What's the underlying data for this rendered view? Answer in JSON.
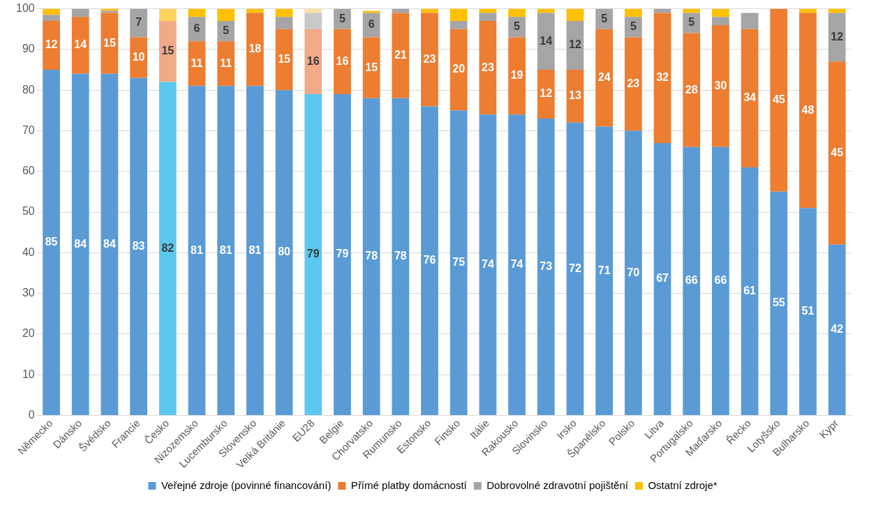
{
  "chart_data": {
    "type": "bar",
    "stacked": true,
    "categories": [
      "Německo",
      "Dánsko",
      "Švédsko",
      "Francie",
      "Česko",
      "Nizozemsko",
      "Lucembursko",
      "Slovensko",
      "Velká Británie",
      "EU28",
      "Belgie",
      "Chorvatsko",
      "Rumunsko",
      "Estonsko",
      "Finsko",
      "Itálie",
      "Rakousko",
      "Slovinsko",
      "Irsko",
      "Španělsko",
      "Polsko",
      "Litva",
      "Portugalsko",
      "Maďarsko",
      "Řecko",
      "Lotyšsko",
      "Bulharsko",
      "Kypr"
    ],
    "series": [
      {
        "name": "Veřejné zdroje (povinné financování)",
        "color": "#5b9bd5",
        "colors": [
          "#5b9bd5",
          "#5b9bd5",
          "#5b9bd5",
          "#5b9bd5",
          "#5bc8f0",
          "#5b9bd5",
          "#5b9bd5",
          "#5b9bd5",
          "#5b9bd5",
          "#5bc8f0",
          "#5b9bd5",
          "#5b9bd5",
          "#5b9bd5",
          "#5b9bd5",
          "#5b9bd5",
          "#5b9bd5",
          "#5b9bd5",
          "#5b9bd5",
          "#5b9bd5",
          "#5b9bd5",
          "#5b9bd5",
          "#5b9bd5",
          "#5b9bd5",
          "#5b9bd5",
          "#5b9bd5",
          "#5b9bd5",
          "#5b9bd5",
          "#5b9bd5"
        ],
        "values": [
          85,
          84,
          84,
          83,
          82,
          81,
          81,
          81,
          80,
          79,
          79,
          78,
          78,
          76,
          75,
          74,
          74,
          73,
          72,
          71,
          70,
          67,
          66,
          66,
          61,
          55,
          51,
          42
        ],
        "value_labels": [
          "85",
          "84",
          "84",
          "83",
          "82",
          "81",
          "81",
          "81",
          "80",
          "79",
          "79",
          "78",
          "78",
          "76",
          "75",
          "74",
          "74",
          "73",
          "72",
          "71",
          "70",
          "67",
          "66",
          "66",
          "61",
          "55",
          "51",
          "42"
        ]
      },
      {
        "name": "Přímé platby domácností",
        "color": "#ed7d31",
        "colors": [
          "#ed7d31",
          "#ed7d31",
          "#ed7d31",
          "#ed7d31",
          "#f2a987",
          "#ed7d31",
          "#ed7d31",
          "#ed7d31",
          "#ed7d31",
          "#f2a987",
          "#ed7d31",
          "#ed7d31",
          "#ed7d31",
          "#ed7d31",
          "#ed7d31",
          "#ed7d31",
          "#ed7d31",
          "#ed7d31",
          "#ed7d31",
          "#ed7d31",
          "#ed7d31",
          "#ed7d31",
          "#ed7d31",
          "#ed7d31",
          "#ed7d31",
          "#ed7d31",
          "#ed7d31",
          "#ed7d31"
        ],
        "values": [
          12,
          14,
          15,
          10,
          15,
          11,
          11,
          18,
          15,
          16,
          16,
          15,
          21,
          23,
          20,
          23,
          19,
          12,
          13,
          24,
          23,
          32,
          28,
          30,
          34,
          45,
          48,
          45
        ],
        "value_labels": [
          "12",
          "14",
          "15",
          "10",
          "15",
          "11",
          "11",
          "18",
          "15",
          "16",
          "16",
          "15",
          "21",
          "23",
          "20",
          "23",
          "19",
          "12",
          "13",
          "24",
          "23",
          "32",
          "28",
          "30",
          "34",
          "45",
          "48",
          "45"
        ]
      },
      {
        "name": "Dobrovolné zdravotní pojištění",
        "color": "#a5a5a5",
        "colors": [
          "#a5a5a5",
          "#a5a5a5",
          "#a5a5a5",
          "#a5a5a5",
          "#c9c9c9",
          "#a5a5a5",
          "#a5a5a5",
          "#a5a5a5",
          "#a5a5a5",
          "#c9c9c9",
          "#a5a5a5",
          "#a5a5a5",
          "#a5a5a5",
          "#a5a5a5",
          "#a5a5a5",
          "#a5a5a5",
          "#a5a5a5",
          "#a5a5a5",
          "#a5a5a5",
          "#a5a5a5",
          "#a5a5a5",
          "#a5a5a5",
          "#a5a5a5",
          "#a5a5a5",
          "#a5a5a5",
          "#a5a5a5",
          "#a5a5a5",
          "#a5a5a5"
        ],
        "values": [
          1.5,
          2,
          0.5,
          7,
          0,
          6,
          5,
          0,
          3,
          4,
          5,
          6,
          1,
          0,
          2,
          2,
          5,
          14,
          12,
          5,
          5,
          1,
          5,
          2,
          4,
          0,
          0,
          12
        ],
        "value_labels": [
          null,
          null,
          null,
          "7",
          null,
          "6",
          "5",
          null,
          null,
          null,
          "5",
          "6",
          null,
          null,
          null,
          null,
          "5",
          "14",
          "12",
          "5",
          "5",
          null,
          "5",
          null,
          null,
          null,
          null,
          "12"
        ]
      },
      {
        "name": "Ostatní zdroje*",
        "color": "#ffc000",
        "colors": [
          "#ffc000",
          "#ffc000",
          "#ffc000",
          "#ffc000",
          "#fdd35a",
          "#ffc000",
          "#ffc000",
          "#ffc000",
          "#ffc000",
          "#fde2a0",
          "#ffc000",
          "#ffc000",
          "#ffc000",
          "#ffc000",
          "#ffc000",
          "#ffc000",
          "#ffc000",
          "#ffc000",
          "#ffc000",
          "#ffc000",
          "#ffc000",
          "#ffc000",
          "#ffc000",
          "#ffc000",
          "#ffc000",
          "#ffc000",
          "#ffc000",
          "#ffc000"
        ],
        "values": [
          1.5,
          0,
          0.5,
          0,
          3,
          2,
          3,
          1,
          2,
          1,
          0,
          0.5,
          0,
          1,
          3,
          1,
          2,
          1,
          3,
          0,
          2,
          0,
          1,
          2,
          0,
          0,
          1,
          1
        ]
      }
    ],
    "ylim": [
      0,
      100
    ],
    "yticks": [
      0,
      10,
      20,
      30,
      40,
      50,
      60,
      70,
      80,
      90,
      100
    ],
    "grid": "y",
    "legend": "bottom"
  }
}
